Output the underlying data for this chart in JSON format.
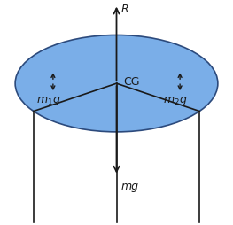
{
  "ellipse_color": "#7aaee8",
  "ellipse_edge_color": "#2c4a7c",
  "bg_color": "#ffffff",
  "R_label": "R",
  "mg_label": "mg",
  "m1g_label": "$m_1g$",
  "m2g_label": "$m_2g$",
  "CG_label": "CG",
  "arrow_color": "#1a1a1a",
  "line_color": "#1a1a1a",
  "font_color": "#1a1a1a",
  "font_size": 9
}
